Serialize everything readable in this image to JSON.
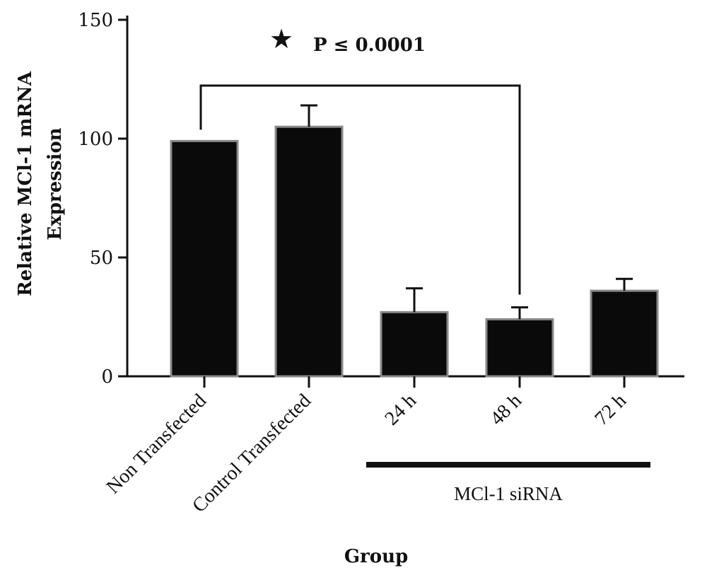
{
  "chart_data": {
    "type": "bar",
    "xlabel": "Group",
    "ylabel_lines": [
      "Relative MCl-1 mRNA",
      "Expression"
    ],
    "ylim": [
      0,
      150
    ],
    "yticks": [
      0,
      50,
      100,
      150
    ],
    "categories": [
      "Non Transfected",
      "Control Transfected",
      "24 h",
      "48 h",
      "72 h"
    ],
    "values": [
      99,
      105,
      27,
      24,
      36
    ],
    "error_upper": [
      0,
      9,
      10,
      5,
      5
    ],
    "significance": {
      "from_category": "Non Transfected",
      "to_category": "48 h",
      "symbol": "★",
      "label": "P ≤ 0.0001"
    },
    "group_bracket": {
      "label": "MCl-1 siRNA",
      "categories": [
        "24 h",
        "48 h",
        "72 h"
      ]
    },
    "grid": false,
    "legend": "none"
  }
}
